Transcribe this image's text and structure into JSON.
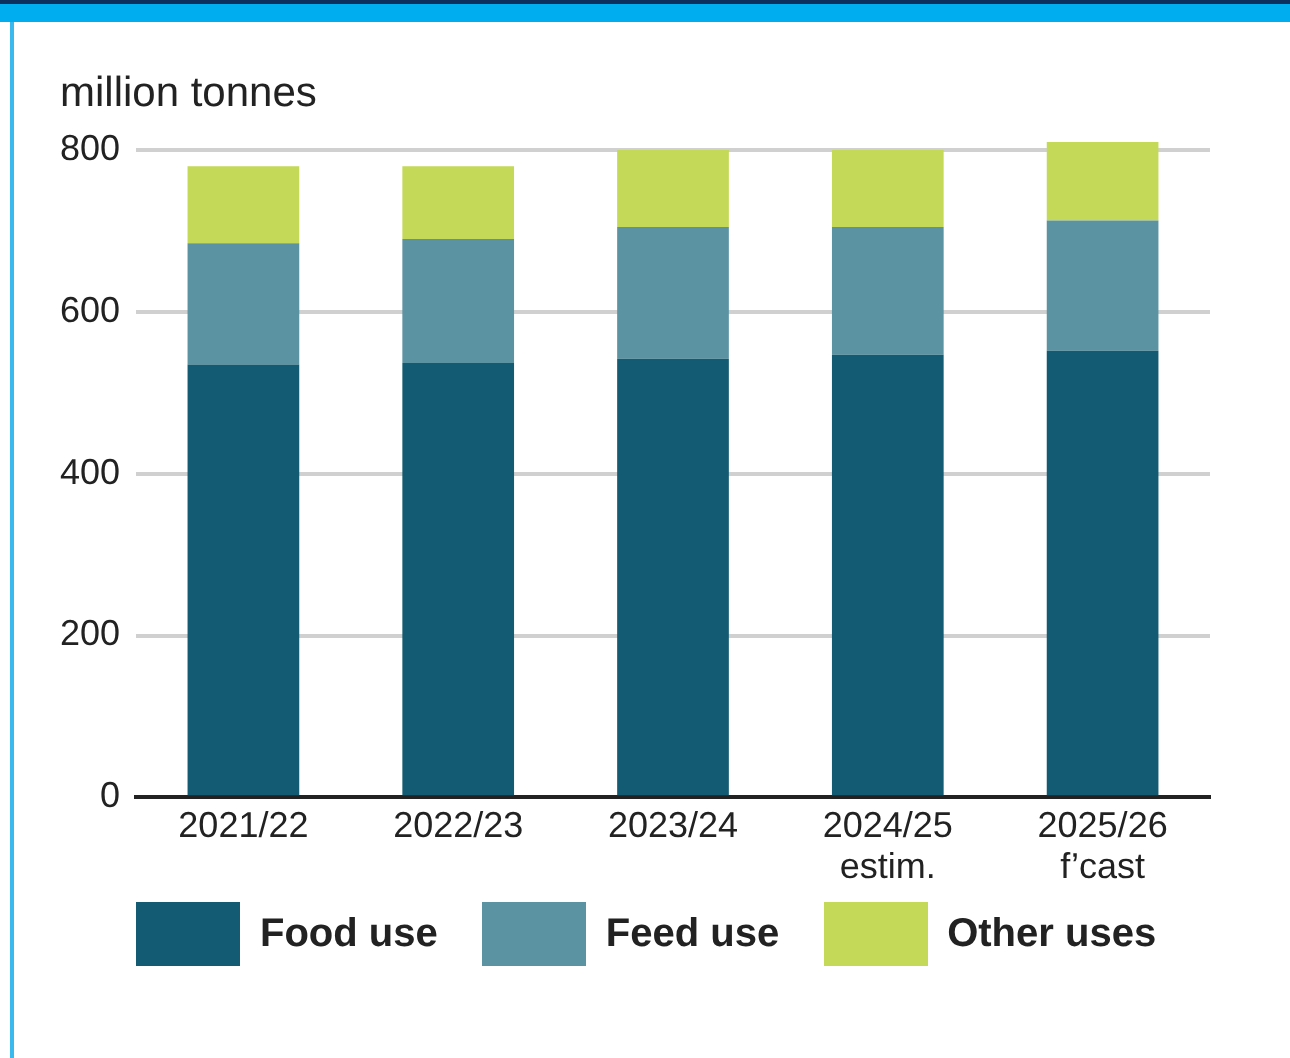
{
  "chart_data": {
    "type": "bar",
    "ylabel": "million tonnes",
    "categories": [
      "2021/22",
      "2022/23",
      "2023/24",
      "2024/25\nestim.",
      "2025/26\nf’cast"
    ],
    "stacked": true,
    "series": [
      {
        "name": "Food use",
        "color": "#135b73",
        "values": [
          535,
          537,
          542,
          547,
          552
        ]
      },
      {
        "name": "Feed use",
        "color": "#5b93a3",
        "values": [
          150,
          153,
          163,
          158,
          161
        ]
      },
      {
        "name": "Other uses",
        "color": "#c4d957",
        "values": [
          95,
          90,
          95,
          95,
          97
        ]
      }
    ],
    "ylim": [
      0,
      810
    ],
    "yticks": [
      0,
      200,
      400,
      600,
      800
    ],
    "grid": "y",
    "legend": "bottom"
  }
}
